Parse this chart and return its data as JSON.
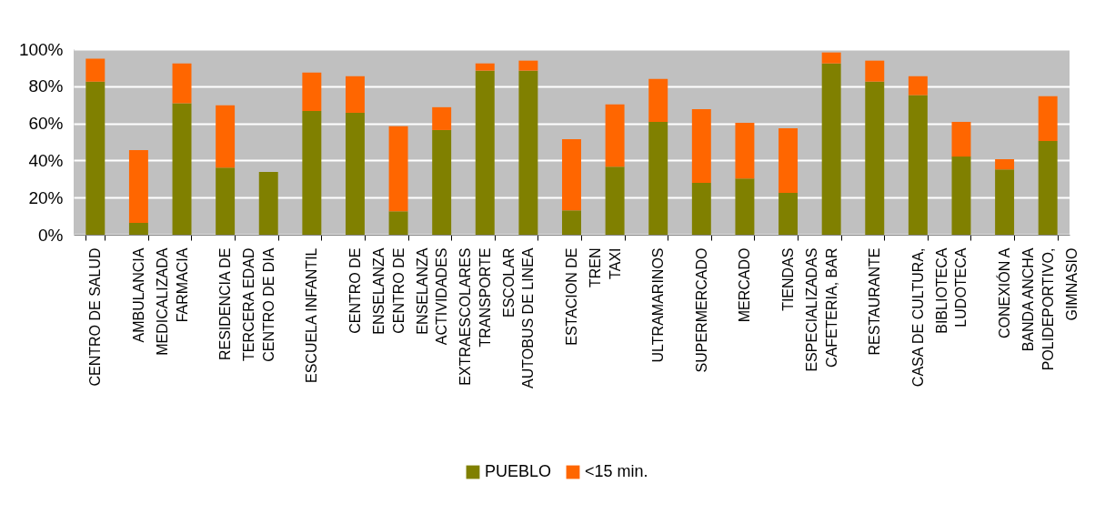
{
  "chart_data": {
    "type": "bar",
    "stacked": true,
    "categories": [
      "CENTRO DE SALUD",
      "AMBULANCIA\nMEDICALIZADA",
      "FARMACIA",
      "RESIDENCIA DE\nTERCERA EDAD",
      "CENTRO DE DIA",
      "ESCUELA INFANTIL",
      "CENTRO DE\nENSELANZA",
      "CENTRO DE\nENSELANZA",
      "ACTIVIDADES\nEXTRAESCOLARES",
      "TRANSPORTE\nESCOLAR",
      "AUTOBUS DE LINEA",
      "ESTACION DE\nTREN",
      "TAXI",
      "ULTRAMARINOS",
      "SUPERMERCADO",
      "MERCADO",
      "TIENDAS\nESPECIALIZADAS",
      "CAFETERIA, BAR",
      "RESTAURANTE",
      "CASA DE CULTURA,\nBIBLIOTECA",
      "LUDOTECA",
      "CONEXIÓN A\nBANDA ANCHA",
      "POLIDEPORTIVO,\nGIMNASIO"
    ],
    "series": [
      {
        "name": "PUEBLO",
        "color": "#808000",
        "values": [
          82.5,
          6.4,
          70.8,
          36.2,
          33.8,
          66.7,
          65.7,
          12.6,
          56.4,
          88.4,
          88.4,
          13.1,
          36.7,
          60.8,
          27.9,
          30.3,
          22.5,
          92.3,
          82.5,
          75.2,
          42.1,
          35.2,
          50.5
        ]
      },
      {
        "name": "<15 min.",
        "color": "#ff6600",
        "values": [
          12.3,
          39.2,
          21.5,
          33.5,
          0,
          20.7,
          19.7,
          45.8,
          12.3,
          3.9,
          5.4,
          38.4,
          33.5,
          23.1,
          39.8,
          30,
          34.9,
          5.9,
          11.3,
          10.2,
          18.7,
          5.5,
          24.1
        ]
      }
    ],
    "ylim": [
      0,
      100
    ],
    "yticks": [
      {
        "value": 0,
        "label": "0%"
      },
      {
        "value": 20,
        "label": "20%"
      },
      {
        "value": 40,
        "label": "40%"
      },
      {
        "value": 60,
        "label": "60%"
      },
      {
        "value": 80,
        "label": "80%"
      },
      {
        "value": 100,
        "label": "100%"
      }
    ],
    "grid": "y",
    "legend": "bottom"
  }
}
